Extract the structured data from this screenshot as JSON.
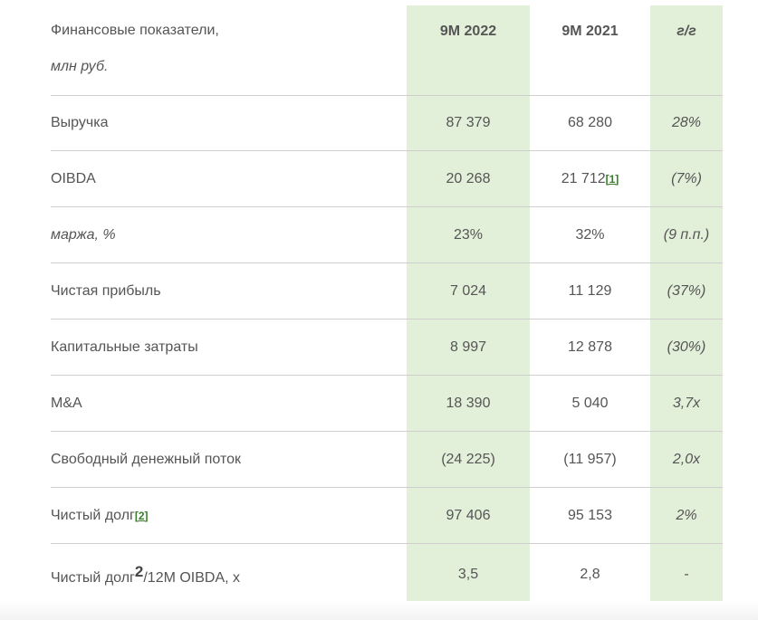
{
  "header": {
    "label_line1": "Финансовые показатели,",
    "label_line2": "млн руб.",
    "col1": "9M 2022",
    "col2": "9M 2021",
    "col3": "г/г"
  },
  "rows": [
    {
      "label": "Выручка",
      "v1": "87 379",
      "v2": "68 280",
      "yoy": "28%"
    },
    {
      "label": "OIBDA",
      "v1": "20 268",
      "v2": "21 712",
      "v2_note": "[1]",
      "yoy": "(7%)"
    },
    {
      "label": "маржа, %",
      "v1": "23%",
      "v2": "32%",
      "yoy": "(9 п.п.)"
    },
    {
      "label": "Чистая прибыль",
      "v1": "7 024",
      "v2": "11 129",
      "yoy": "(37%)"
    },
    {
      "label": "Капитальные затраты",
      "v1": "8 997",
      "v2": "12 878",
      "yoy": "(30%)"
    },
    {
      "label": "M&A",
      "v1": "18 390",
      "v2": "5 040",
      "yoy": "3,7x"
    },
    {
      "label": "Свободный денежный поток",
      "v1": "(24 225)",
      "v2": "(11 957)",
      "yoy": "2,0x"
    },
    {
      "label": "Чистый долг",
      "label_note": "[2]",
      "v1": "97 406",
      "v2": "95 153",
      "yoy": "2%"
    },
    {
      "label": "Чистый долг",
      "label_sup": "2",
      "label_tail": "/12M OIBDA, x",
      "v1": "3,5",
      "v2": "2,8",
      "yoy": "-"
    }
  ],
  "colors": {
    "highlight": "#e2efd9",
    "footnote": "#3a7d2a",
    "text": "#555555",
    "divider": "#cfcfcf"
  }
}
